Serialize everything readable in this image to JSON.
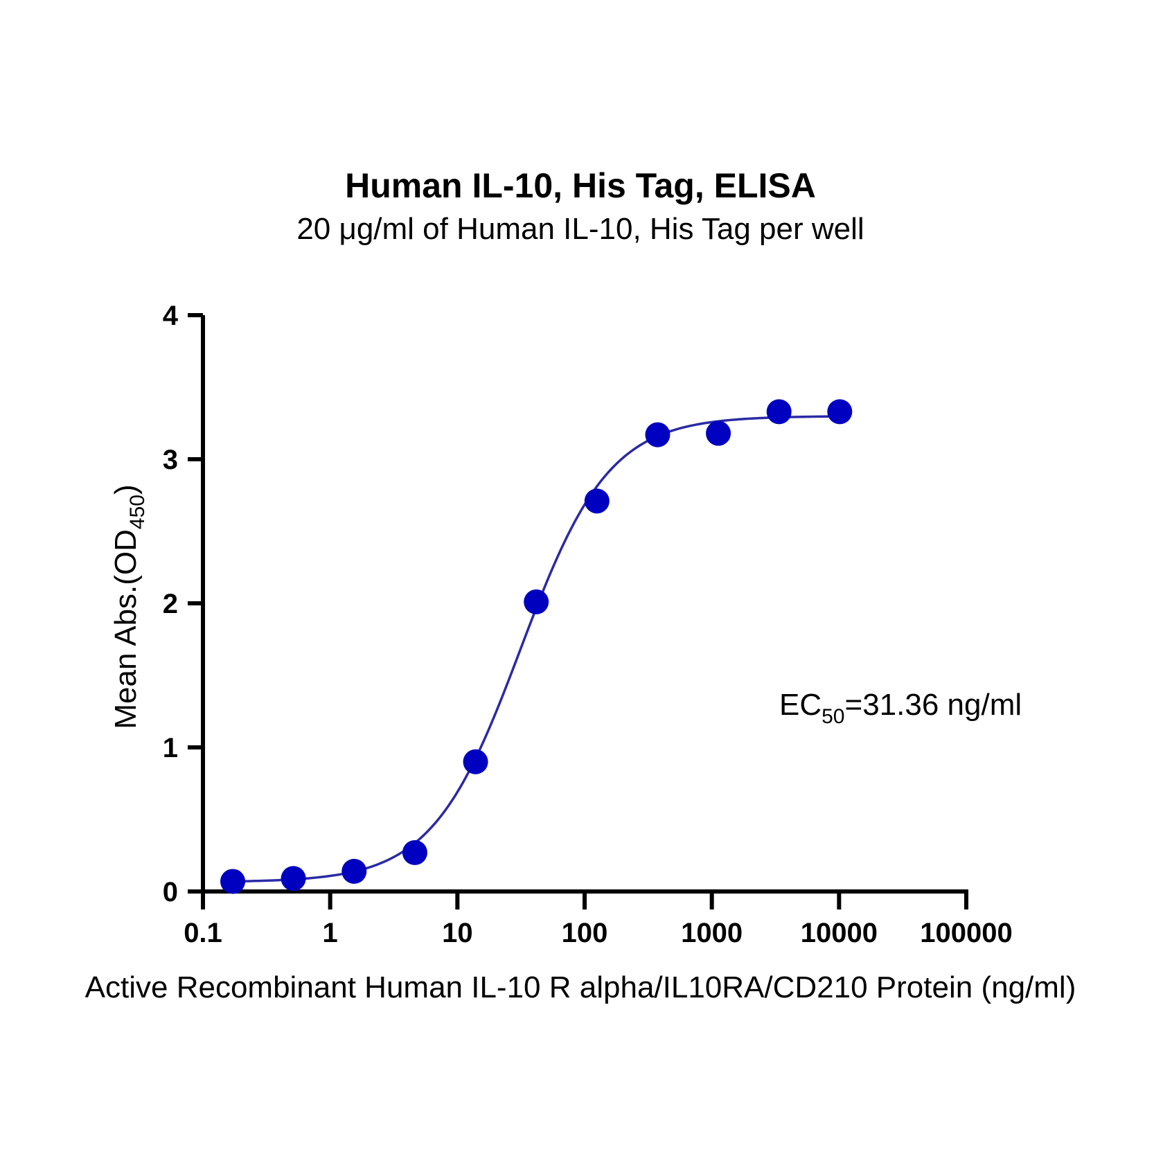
{
  "chart_data": {
    "type": "scatter",
    "title": "Human IL-10, His Tag, ELISA",
    "subtitle": "20 μg/ml of Human IL-10, His Tag per well",
    "xlabel": "Active Recombinant Human IL-10 R alpha/IL10RA/CD210 Protein (ng/ml)",
    "ylabel_main": "Mean Abs.(OD",
    "ylabel_sub": "450",
    "ylabel_end": ")",
    "x_scale": "log",
    "xlim": [
      0.1,
      100000
    ],
    "ylim": [
      0,
      4
    ],
    "x_ticks": [
      0.1,
      1,
      10,
      100,
      1000,
      10000,
      100000
    ],
    "x_tick_labels": [
      "0.1",
      "1",
      "10",
      "100",
      "1000",
      "10000",
      "100000"
    ],
    "y_ticks": [
      0,
      1,
      2,
      3,
      4
    ],
    "y_tick_labels": [
      "0",
      "1",
      "2",
      "3",
      "4"
    ],
    "grid": false,
    "series": [
      {
        "color": "#0000c0",
        "line_color": "#2a2aa6",
        "x": [
          0.1715,
          0.514,
          1.543,
          4.63,
          13.89,
          41.67,
          125,
          375,
          1125,
          3375,
          10125
        ],
        "y": [
          0.07,
          0.09,
          0.14,
          0.27,
          0.9,
          2.01,
          2.71,
          3.17,
          3.18,
          3.33,
          3.33
        ],
        "fit": {
          "model": "4PL",
          "bottom": 0.065,
          "top": 3.3,
          "ec50": 31.36,
          "hill": 1.25
        }
      }
    ],
    "annotation": {
      "prefix": "EC",
      "sub": "50",
      "suffix": "=31.36 ng/ml"
    }
  }
}
